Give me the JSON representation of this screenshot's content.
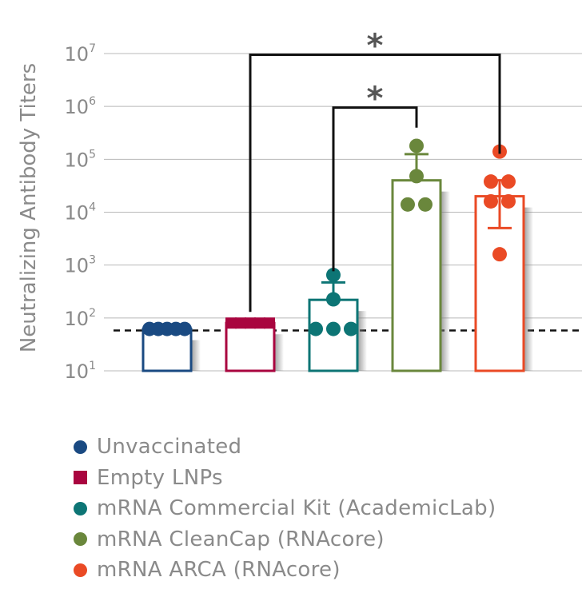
{
  "chart_data": {
    "type": "bar",
    "ylabel": "Neutralizing Antibody Titers",
    "yscale": "log",
    "ylim": [
      10,
      10000000
    ],
    "ytick_labels": [
      {
        "base": "10",
        "exp": "1"
      },
      {
        "base": "10",
        "exp": "2"
      },
      {
        "base": "10",
        "exp": "3"
      },
      {
        "base": "10",
        "exp": "4"
      },
      {
        "base": "10",
        "exp": "5"
      },
      {
        "base": "10",
        "exp": "6"
      },
      {
        "base": "10",
        "exp": "7"
      }
    ],
    "ytick_values": [
      10,
      100,
      1000,
      10000,
      100000,
      1000000,
      10000000
    ],
    "grid": "horizontal",
    "limit_of_detection": 58,
    "legend_position": "bottom",
    "series": [
      {
        "name": "Unvaccinated",
        "marker": "circle",
        "color": "#1a4a82",
        "mean": 62,
        "error_high": null,
        "error_low": null,
        "points": [
          62,
          62,
          62,
          62,
          62
        ]
      },
      {
        "name": "Empty LNPs",
        "marker": "square",
        "color": "#a9053f",
        "mean": 80,
        "error_high": null,
        "error_low": null,
        "points": [
          80,
          80,
          80,
          80,
          80
        ]
      },
      {
        "name": "mRNA Commercial Kit (AcademicLab)",
        "marker": "circle",
        "color": "#0d7575",
        "mean": 220,
        "error_high": 470,
        "error_low": null,
        "points": [
          650,
          225,
          62,
          62,
          62
        ]
      },
      {
        "name": "mRNA CleanCap (RNAcore)",
        "marker": "circle",
        "color": "#6a873c",
        "mean": 40000,
        "error_high": 125000,
        "error_low": null,
        "points": [
          180000,
          48000,
          14000,
          14000
        ]
      },
      {
        "name": "mRNA ARCA (RNAcore)",
        "marker": "circle",
        "color": "#ea4a25",
        "mean": 20000,
        "error_high": 40000,
        "error_low": 5000,
        "points": [
          140000,
          38000,
          38000,
          16000,
          16000,
          1600
        ]
      }
    ],
    "annotations": [
      {
        "label": "*",
        "from": "mRNA Commercial Kit (AcademicLab)",
        "to": "mRNA CleanCap (RNAcore)",
        "level": 1000000
      },
      {
        "label": "*",
        "from": "Empty LNPs",
        "to": "mRNA ARCA (RNAcore)",
        "level": 10000000
      }
    ]
  }
}
